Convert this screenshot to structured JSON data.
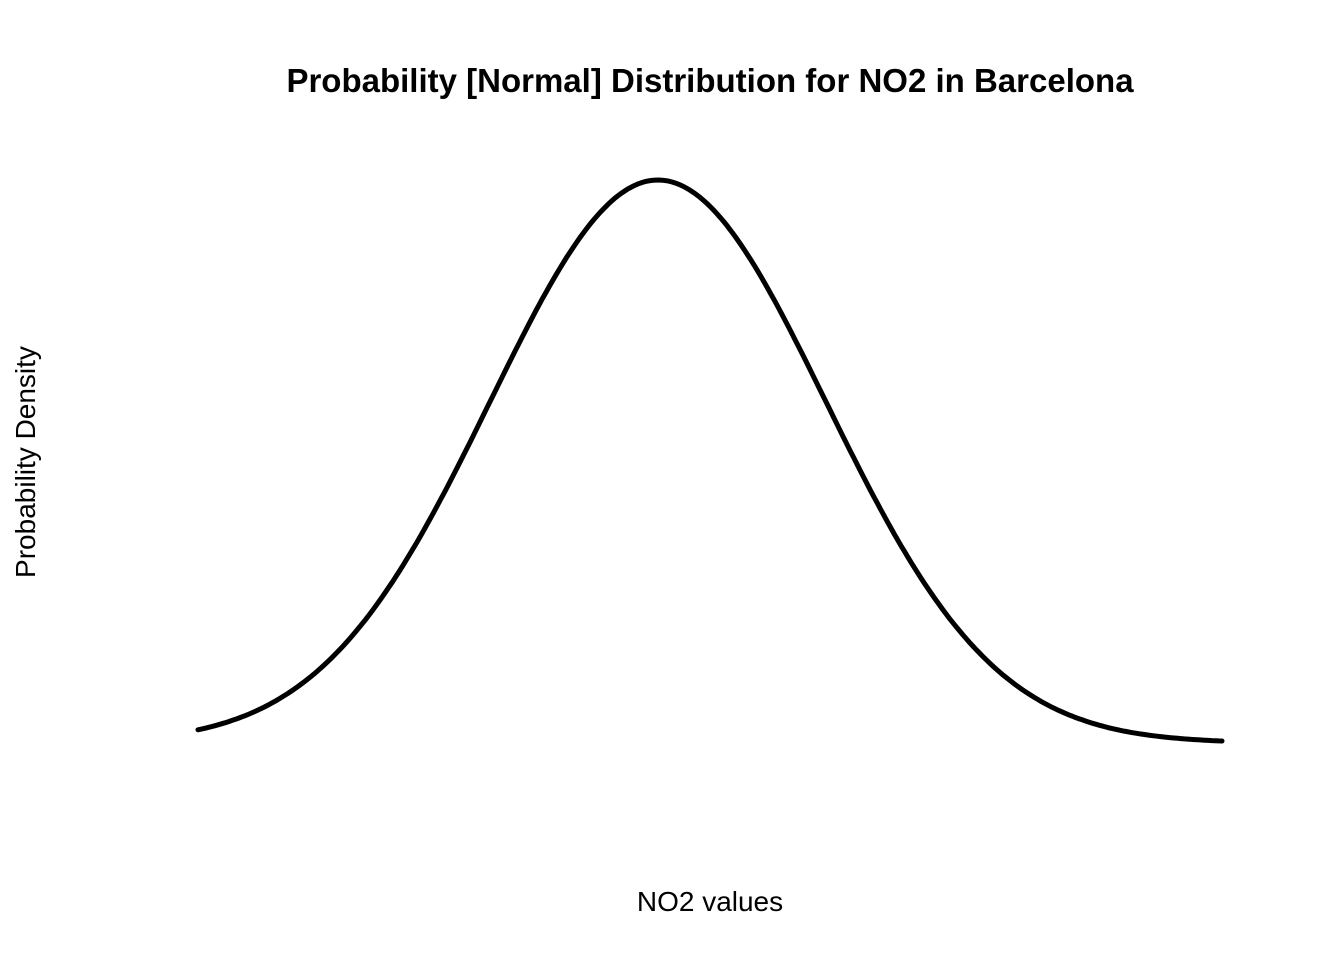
{
  "chart_data": {
    "type": "line",
    "title": "Probability [Normal] Distribution for NO2 in Barcelona",
    "xlabel": "NO2 values",
    "ylabel": "Probability Density",
    "distribution": "normal",
    "x_range_in_sd_from_mean": [
      -2.74,
      3.36
    ],
    "axes_shown": false,
    "grid": false,
    "line_color": "#000000"
  }
}
